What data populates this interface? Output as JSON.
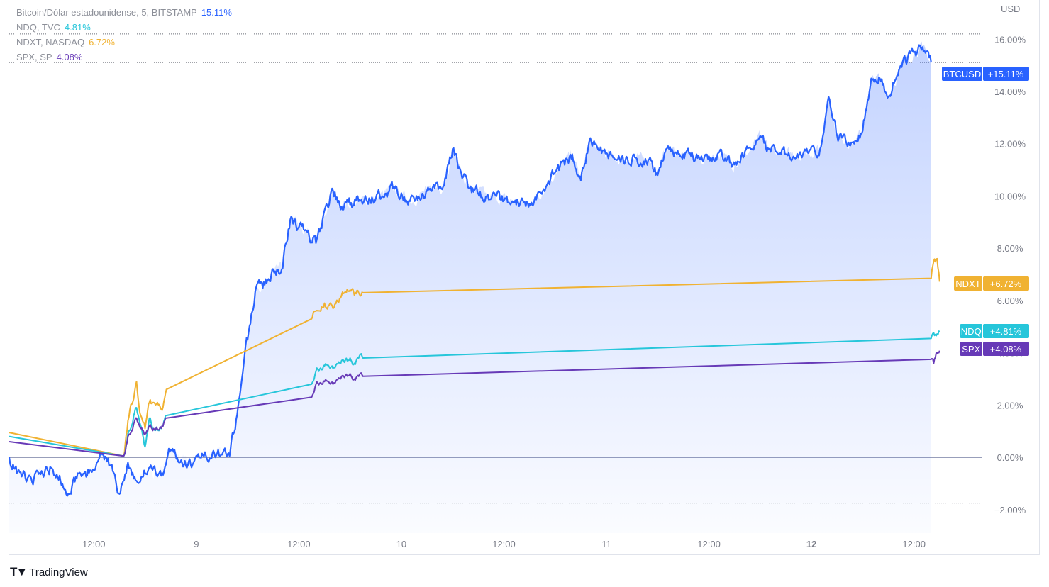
{
  "legend": [
    {
      "label": "Bitcoin/Dólar estadounidense, 5, BITSTAMP",
      "value": "15.11%",
      "color": "#2962ff"
    },
    {
      "label": "NDQ, TVC",
      "value": "4.81%",
      "color": "#26c6da"
    },
    {
      "label": "NDXT, NASDAQ",
      "value": "6.72%",
      "color": "#f0b232"
    },
    {
      "label": "SPX, SP",
      "value": "4.08%",
      "color": "#673ab7"
    }
  ],
  "branding": {
    "name": "TradingView"
  },
  "chart_data": {
    "type": "line",
    "currency_label": "USD",
    "y_unit": "%",
    "ylim": [
      -2.9,
      17.5
    ],
    "y_ticks": [
      -2,
      0,
      2,
      4,
      6,
      8,
      10,
      12,
      14,
      16
    ],
    "y_tick_labels": [
      "−2.00%",
      "0.00%",
      "2.00%",
      "4.00%",
      "6.00%",
      "8.00%",
      "10.00%",
      "12.00%",
      "14.00%",
      "16.00%"
    ],
    "x_ticks": [
      {
        "t": 12,
        "label": "12:00",
        "bold": false
      },
      {
        "t": 24,
        "label": "9",
        "bold": false
      },
      {
        "t": 36,
        "label": "12:00",
        "bold": false
      },
      {
        "t": 48,
        "label": "10",
        "bold": false
      },
      {
        "t": 60,
        "label": "12:00",
        "bold": false
      },
      {
        "t": 72,
        "label": "11",
        "bold": false
      },
      {
        "t": 84,
        "label": "12:00",
        "bold": false
      },
      {
        "t": 96,
        "label": "12",
        "bold": true
      },
      {
        "t": 108,
        "label": "12:00",
        "bold": false
      }
    ],
    "xlim": [
      2.1,
      115
    ],
    "baseline": 0,
    "grid": false,
    "series": [
      {
        "name": "BTCUSD",
        "color": "#2962ff",
        "tag": "BTCUSD",
        "tag_value": "+15.11%",
        "last": 15.11,
        "area": true,
        "volatility": 0.18,
        "points": [
          [
            2.1,
            0.0
          ],
          [
            3,
            -0.6
          ],
          [
            5,
            -0.8
          ],
          [
            7,
            -0.4
          ],
          [
            8,
            -0.7
          ],
          [
            9,
            -1.4
          ],
          [
            10,
            -0.8
          ],
          [
            12,
            -0.5
          ],
          [
            13,
            0.1
          ],
          [
            14,
            -0.3
          ],
          [
            15,
            -1.4
          ],
          [
            16,
            -0.2
          ],
          [
            17,
            -0.9
          ],
          [
            18,
            -0.6
          ],
          [
            20,
            -0.6
          ],
          [
            21,
            0.3
          ],
          [
            23,
            -0.3
          ],
          [
            25,
            0.2
          ],
          [
            27,
            0.1
          ],
          [
            28,
            0.3
          ],
          [
            29,
            2.2
          ],
          [
            30,
            4.5
          ],
          [
            31,
            6.5
          ],
          [
            32,
            6.6
          ],
          [
            33,
            7.2
          ],
          [
            34,
            7.2
          ],
          [
            35,
            9.1
          ],
          [
            36,
            8.8
          ],
          [
            38,
            8.2
          ],
          [
            40,
            10.2
          ],
          [
            41,
            9.6
          ],
          [
            43,
            9.8
          ],
          [
            45,
            9.9
          ],
          [
            47,
            10.3
          ],
          [
            49,
            9.8
          ],
          [
            51,
            10.2
          ],
          [
            53,
            10.4
          ],
          [
            54,
            11.8
          ],
          [
            55,
            10.9
          ],
          [
            56,
            10.3
          ],
          [
            58,
            10.0
          ],
          [
            61,
            9.8
          ],
          [
            63,
            9.7
          ],
          [
            65,
            10.4
          ],
          [
            66,
            10.9
          ],
          [
            68,
            11.6
          ],
          [
            69,
            10.6
          ],
          [
            70,
            12.1
          ],
          [
            71,
            11.8
          ],
          [
            73,
            11.4
          ],
          [
            75,
            11.4
          ],
          [
            77,
            11.4
          ],
          [
            78,
            10.8
          ],
          [
            79,
            11.8
          ],
          [
            81,
            11.6
          ],
          [
            83,
            11.4
          ],
          [
            85,
            11.6
          ],
          [
            87,
            11.2
          ],
          [
            89,
            11.8
          ],
          [
            90,
            12.3
          ],
          [
            91,
            11.8
          ],
          [
            93,
            11.6
          ],
          [
            95,
            11.6
          ],
          [
            97,
            11.8
          ],
          [
            98,
            13.8
          ],
          [
            99,
            12.3
          ],
          [
            101,
            12.0
          ],
          [
            102,
            12.5
          ],
          [
            103,
            14.5
          ],
          [
            104,
            14.5
          ],
          [
            105,
            13.8
          ],
          [
            106,
            14.6
          ],
          [
            107,
            15.2
          ],
          [
            108,
            15.5
          ],
          [
            109,
            15.7
          ],
          [
            110,
            15.11
          ]
        ]
      },
      {
        "name": "NDXT",
        "color": "#f0b232",
        "tag": "NDXT",
        "tag_value": "+6.72%",
        "last": 6.72,
        "area": false,
        "volatility": 0.12,
        "points": [
          [
            2.1,
            0.95
          ],
          [
            15.5,
            0.05
          ],
          [
            16,
            1.4
          ],
          [
            17,
            2.9
          ],
          [
            17.5,
            1.6
          ],
          [
            18,
            1.1
          ],
          [
            18.5,
            2.1
          ],
          [
            19,
            2.1
          ],
          [
            20,
            1.8
          ],
          [
            20.5,
            2.6
          ],
          [
            37.5,
            5.3
          ],
          [
            38,
            5.6
          ],
          [
            39,
            5.9
          ],
          [
            40,
            5.7
          ],
          [
            41,
            6.2
          ],
          [
            42,
            6.4
          ],
          [
            42.5,
            6.2
          ],
          [
            43,
            6.3
          ],
          [
            43.5,
            6.3
          ],
          [
            110,
            6.85
          ],
          [
            110.3,
            7.5
          ],
          [
            110.7,
            7.6
          ],
          [
            111,
            6.72
          ]
        ]
      },
      {
        "name": "NDQ",
        "color": "#26c6da",
        "tag": "NDQ",
        "tag_value": "+4.81%",
        "last": 4.81,
        "area": false,
        "volatility": 0.1,
        "points": [
          [
            2.1,
            0.8
          ],
          [
            15.5,
            0.05
          ],
          [
            16,
            0.9
          ],
          [
            17,
            1.9
          ],
          [
            17.5,
            1.2
          ],
          [
            18,
            0.4
          ],
          [
            18.5,
            1.5
          ],
          [
            19,
            1.1
          ],
          [
            20,
            1.2
          ],
          [
            20.5,
            1.6
          ],
          [
            37.5,
            2.8
          ],
          [
            38,
            3.3
          ],
          [
            39,
            3.5
          ],
          [
            40,
            3.4
          ],
          [
            41,
            3.7
          ],
          [
            42,
            3.8
          ],
          [
            42.5,
            3.6
          ],
          [
            43,
            3.8
          ],
          [
            43.5,
            3.8
          ],
          [
            110,
            4.55
          ],
          [
            110.5,
            4.7
          ],
          [
            111,
            4.81
          ]
        ]
      },
      {
        "name": "SPX",
        "color": "#673ab7",
        "tag": "SPX",
        "tag_value": "+4.08%",
        "last": 4.08,
        "area": false,
        "volatility": 0.08,
        "points": [
          [
            2.1,
            0.6
          ],
          [
            15.5,
            0.05
          ],
          [
            16,
            0.8
          ],
          [
            17,
            1.5
          ],
          [
            17.5,
            1.1
          ],
          [
            18,
            0.9
          ],
          [
            18.5,
            1.2
          ],
          [
            19,
            1.1
          ],
          [
            20,
            1.2
          ],
          [
            20.5,
            1.5
          ],
          [
            37.5,
            2.3
          ],
          [
            38,
            2.8
          ],
          [
            39,
            2.9
          ],
          [
            40,
            2.8
          ],
          [
            41,
            3.1
          ],
          [
            42,
            3.2
          ],
          [
            42.5,
            3.0
          ],
          [
            43,
            3.1
          ],
          [
            43.5,
            3.1
          ],
          [
            110,
            3.75
          ],
          [
            110.3,
            3.6
          ],
          [
            110.6,
            4.0
          ],
          [
            111,
            4.08
          ]
        ]
      }
    ],
    "tag_order": [
      {
        "series": "BTCUSD",
        "display_value": 15.11
      },
      {
        "series": "NDXT",
        "display_value": 6.72
      },
      {
        "series": "NDQ",
        "display_value": 4.81
      },
      {
        "series": "SPX",
        "display_value": 4.08
      }
    ],
    "dotted_levels": [
      16.2,
      15.11,
      -1.75
    ]
  }
}
